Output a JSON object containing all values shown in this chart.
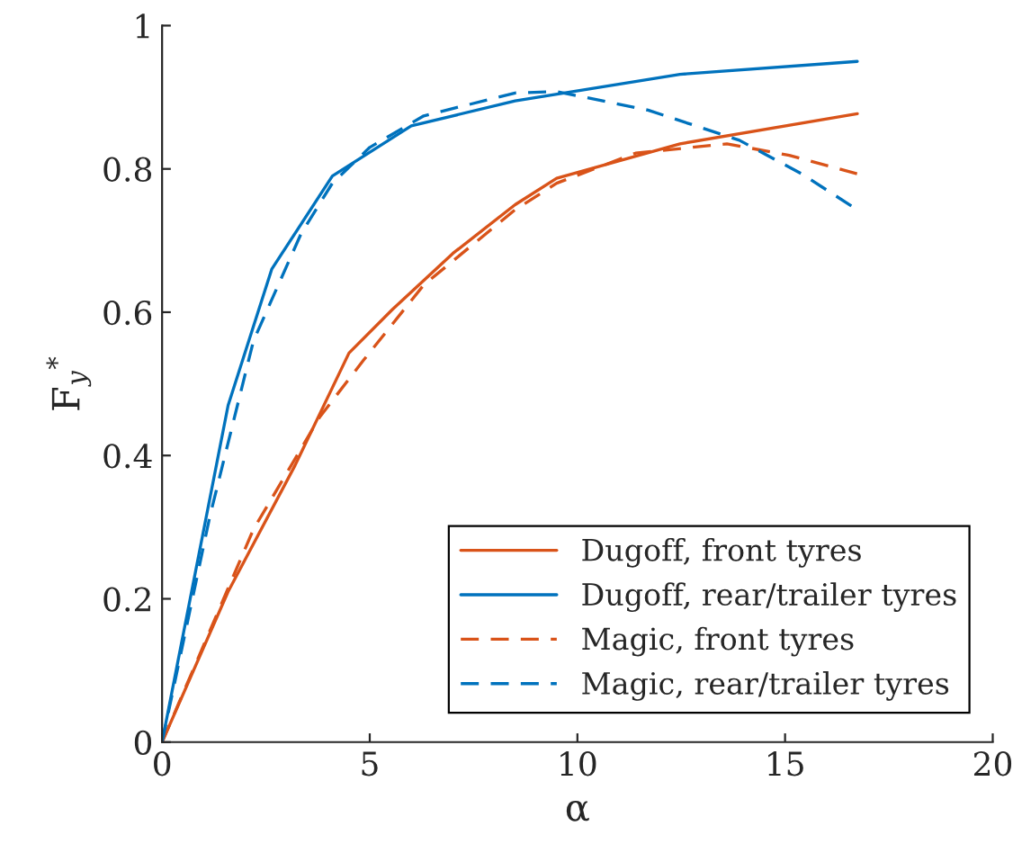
{
  "chart_data": {
    "type": "line",
    "xlabel": "α",
    "ylabel": "F$_{y}$$^{*}$",
    "xlim": [
      0,
      20
    ],
    "ylim": [
      0,
      1
    ],
    "xticks": [
      0,
      5,
      10,
      15,
      20
    ],
    "yticks": [
      0,
      0.2,
      0.4,
      0.6,
      0.8,
      1
    ],
    "grid": false,
    "legend": "bottom right",
    "marker": "none",
    "series": [
      {
        "name": "Dugoff, front tyres",
        "color": "#d95319",
        "line_style": "solid",
        "x": [
          0,
          1.59,
          3.2,
          4.5,
          5.55,
          7.0,
          8.5,
          9.5,
          12.47,
          16.74
        ],
        "values": [
          0,
          0.21,
          0.386,
          0.543,
          0.604,
          0.682,
          0.75,
          0.787,
          0.835,
          0.877
        ]
      },
      {
        "name": "Dugoff, rear/trailer tyres",
        "color": "#0072bd",
        "line_style": "solid",
        "x": [
          0,
          1.59,
          2.64,
          4.1,
          6.0,
          8.5,
          12.47,
          16.74
        ],
        "values": [
          0,
          0.47,
          0.66,
          0.79,
          0.86,
          0.895,
          0.932,
          0.95
        ]
      },
      {
        "name": "Magic, front tyres",
        "color": "#d95319",
        "line_style": "dashed",
        "x": [
          0,
          2.2,
          3.8,
          4.85,
          6.3,
          8.5,
          9.5,
          11.4,
          13.6,
          15.1,
          16.74
        ],
        "values": [
          0,
          0.297,
          0.454,
          0.533,
          0.638,
          0.743,
          0.78,
          0.822,
          0.835,
          0.819,
          0.793
        ]
      },
      {
        "name": "Magic, rear/trailer tyres",
        "color": "#0072bd",
        "line_style": "dashed",
        "x": [
          0,
          1.15,
          2.2,
          3.35,
          4.1,
          5.0,
          6.3,
          8.5,
          9.5,
          11.7,
          13.9,
          15.4,
          16.74
        ],
        "values": [
          0,
          0.315,
          0.56,
          0.71,
          0.78,
          0.83,
          0.874,
          0.906,
          0.908,
          0.882,
          0.84,
          0.793,
          0.743
        ]
      }
    ]
  }
}
